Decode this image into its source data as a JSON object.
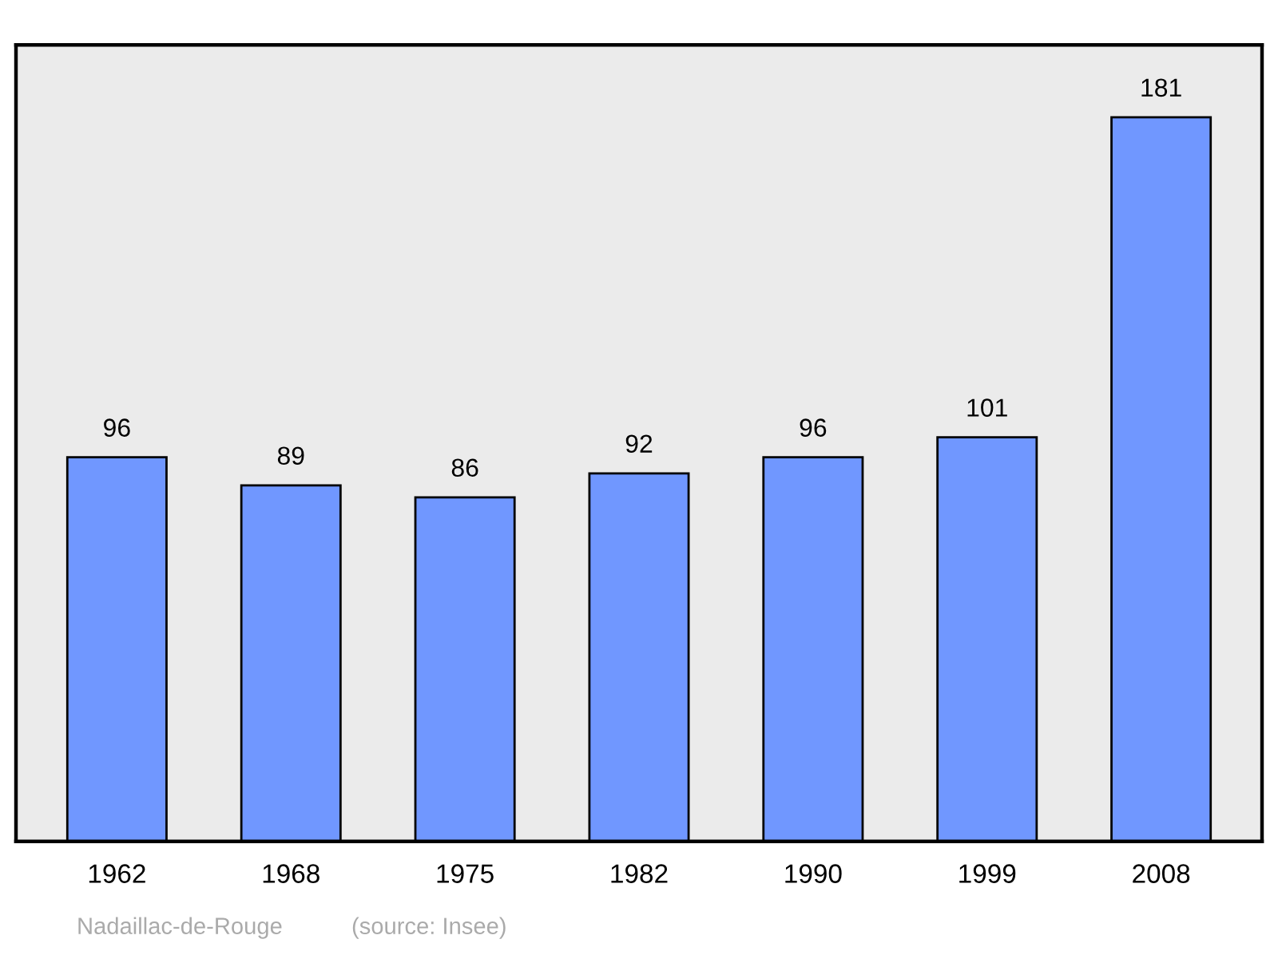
{
  "chart_data": {
    "type": "bar",
    "categories": [
      "1962",
      "1968",
      "1975",
      "1982",
      "1990",
      "1999",
      "2008"
    ],
    "values": [
      96,
      89,
      86,
      92,
      96,
      101,
      181
    ],
    "color": "#7097ff",
    "data_labels": true,
    "grid": false,
    "legend": false,
    "tick_labels": "x",
    "annotations": [
      "Nadaillac-de-Rouge",
      "(source: Insee)"
    ]
  }
}
